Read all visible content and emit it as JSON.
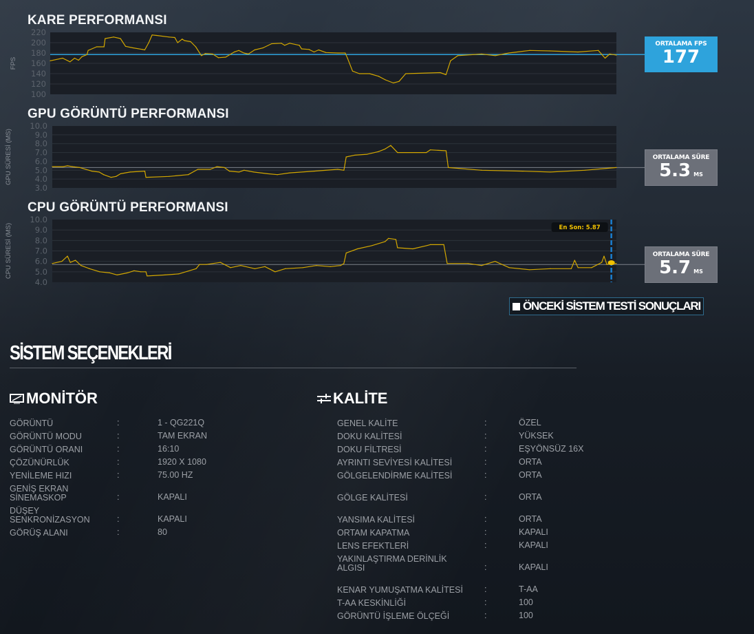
{
  "charts": {
    "fps": {
      "title": "KARE PERFORMANSI",
      "avg_label": "ORTALAMA FPS",
      "avg_value": "177",
      "avg_unit": ""
    },
    "gpu": {
      "title": "GPU GÖRÜNTÜ PERFORMANSI",
      "avg_label": "ORTALAMA SÜRE",
      "avg_value": "5.3",
      "avg_unit": "MS"
    },
    "cpu": {
      "title": "CPU GÖRÜNTÜ PERFORMANSI",
      "avg_label": "ORTALAMA SÜRE",
      "avg_value": "5.7",
      "avg_unit": "MS"
    }
  },
  "legend": {
    "label": "ÖNCEKİ SİSTEM TESTİ SONUÇLARI"
  },
  "colors": {
    "line": "#d4a800",
    "fps_avg": "#2ea3dc",
    "gray_avg": "#6c7079",
    "plot_bg": "#1a1e25",
    "marker": "#1a7fd0"
  },
  "chart_data": [
    {
      "type": "line",
      "title": "KARE PERFORMANSI",
      "ylabel": "FPS",
      "xlabel": "",
      "ylim": [
        100,
        220
      ],
      "yticks": [
        "220",
        "200",
        "180",
        "160",
        "140",
        "120",
        "100"
      ],
      "average": 177,
      "grid": true,
      "x": [
        0,
        2.2,
        3.5,
        4.3,
        5.0,
        5.6,
        6.5,
        6.7,
        8.2,
        9.5,
        9.7,
        11.2,
        12.4,
        13.3,
        14.6,
        16.3,
        16.7,
        17.4,
        18.0,
        18.8,
        21.0,
        22.0,
        22.5,
        23.3,
        23.7,
        24.8,
        25.7,
        26.7,
        27.4,
        28.7,
        29.7,
        31.0,
        32.5,
        33.3,
        34.2,
        35.0,
        36.1,
        37.6,
        39.1,
        40.8,
        41.4,
        42.3,
        44.0,
        44.4,
        45.7,
        46.6,
        47.4,
        48.7,
        50.8,
        52.1,
        52.5,
        53.4,
        54.6,
        56.4,
        58.0,
        59.2,
        60.6,
        61.6,
        62.8,
        68.9,
        69.9,
        70.7,
        72.0,
        76.2,
        78.6,
        81.0,
        84.7,
        88.3,
        93.2,
        96.8,
        98.0,
        98.8,
        100
      ],
      "y": [
        165,
        170,
        163,
        170,
        166,
        173,
        177,
        185,
        192,
        192,
        208,
        211,
        208,
        193,
        190,
        187,
        186,
        200,
        215,
        214,
        211,
        210,
        200,
        207,
        204,
        202,
        192,
        175,
        179,
        178,
        171,
        172,
        182,
        185,
        180,
        178,
        186,
        190,
        198,
        199,
        195,
        199,
        195,
        188,
        187,
        182,
        186,
        181,
        180,
        180,
        170,
        145,
        140,
        140,
        135,
        128,
        122,
        125,
        140,
        142,
        138,
        165,
        175,
        178,
        175,
        180,
        185,
        184,
        182,
        185,
        170,
        178,
        176
      ]
    },
    {
      "type": "line",
      "title": "GPU GÖRÜNTÜ PERFORMANSI",
      "ylabel": "GPU SÜRESİ (MS)",
      "xlabel": "",
      "ylim": [
        3,
        10
      ],
      "yticks": [
        "10.0",
        "9.0",
        "8.0",
        "7.0",
        "6.0",
        "5.0",
        "4.0",
        "3.0"
      ],
      "average": 5.3,
      "grid": true,
      "x": [
        0,
        1.9,
        2.7,
        3.6,
        4.9,
        7.0,
        8.3,
        9.1,
        10.4,
        11.3,
        12.1,
        13.8,
        16.4,
        16.6,
        20.7,
        24.1,
        25.8,
        28.0,
        29.2,
        30.5,
        31.4,
        33.1,
        34.0,
        35.7,
        38.2,
        39.9,
        42.1,
        46.4,
        50.6,
        51.7,
        52.1,
        53.6,
        55.8,
        57.8,
        59.0,
        60.0,
        61.2,
        66.3,
        67.0,
        69.8,
        70.2,
        76.1,
        83.4,
        88.3,
        94.4,
        100
      ],
      "y": [
        5.4,
        5.4,
        5.5,
        5.4,
        5.3,
        4.9,
        4.8,
        4.5,
        4.2,
        4.3,
        4.6,
        4.8,
        4.9,
        4.2,
        4.3,
        4.5,
        5.1,
        5.1,
        5.4,
        5.3,
        4.9,
        4.8,
        5.0,
        4.8,
        4.6,
        4.5,
        4.7,
        4.9,
        5.1,
        5.0,
        6.5,
        6.7,
        6.8,
        7.1,
        7.4,
        7.8,
        7.0,
        7.0,
        7.3,
        7.2,
        5.3,
        5.0,
        4.9,
        4.8,
        5.0,
        5.3
      ]
    },
    {
      "type": "line",
      "title": "CPU GÖRÜNTÜ PERFORMANSI",
      "ylabel": "CPU SÜRESİ (MS)",
      "xlabel": "",
      "ylim": [
        4,
        10
      ],
      "yticks": [
        "10.0",
        "9.0",
        "8.0",
        "7.0",
        "6.0",
        "5.0",
        "4.0"
      ],
      "average": 5.7,
      "grid": true,
      "annotation": {
        "label": "En Son: 5.87",
        "x": 99.1,
        "y": 5.87
      },
      "x": [
        0,
        1.7,
        2.7,
        3.2,
        4.1,
        5.1,
        6.6,
        8.4,
        10.2,
        11.5,
        13.3,
        14.5,
        15.7,
        16.6,
        16.8,
        20.0,
        22.4,
        25.5,
        26.1,
        27.3,
        29.8,
        31.6,
        33.4,
        35.9,
        37.7,
        39.5,
        41.3,
        44.4,
        46.8,
        49.3,
        51.1,
        51.7,
        52.1,
        54.1,
        56.6,
        59.0,
        59.6,
        60.9,
        61.2,
        63.9,
        66.3,
        67.0,
        69.4,
        70.0,
        73.7,
        76.1,
        78.5,
        81.0,
        84.6,
        88.3,
        92.0,
        92.6,
        93.2,
        95.6,
        97.4,
        97.8,
        98.3,
        99.0,
        100
      ],
      "y": [
        5.8,
        6.0,
        6.5,
        5.9,
        6.1,
        5.6,
        5.3,
        5.0,
        4.9,
        4.7,
        4.9,
        5.1,
        5.0,
        5.0,
        4.6,
        4.7,
        4.8,
        5.3,
        5.7,
        5.7,
        5.9,
        5.4,
        5.6,
        5.3,
        5.5,
        5.0,
        5.3,
        5.4,
        5.6,
        5.5,
        5.6,
        5.8,
        6.8,
        7.2,
        7.5,
        7.9,
        8.2,
        8.1,
        7.3,
        7.2,
        7.5,
        7.6,
        7.6,
        5.8,
        5.8,
        5.6,
        6.0,
        5.4,
        5.2,
        5.3,
        5.3,
        6.1,
        5.4,
        5.4,
        5.9,
        6.5,
        5.7,
        5.8,
        5.8
      ]
    }
  ],
  "system": {
    "title": "SİSTEM SEÇENEKLERİ",
    "monitor": {
      "title": "MONİTÖR",
      "rows": [
        {
          "key": "GÖRÜNTÜ",
          "value": "1 - QG221Q"
        },
        {
          "key": "GÖRÜNTÜ MODU",
          "value": "TAM EKRAN"
        },
        {
          "key": "GÖRÜNTÜ ORANI",
          "value": "16:10"
        },
        {
          "key": "ÇÖZÜNÜRLÜK",
          "value": "1920 X 1080"
        },
        {
          "key": "YENİLEME HIZI",
          "value": "75.00 HZ"
        },
        {
          "key": "GENİŞ EKRAN SİNEMASKOP",
          "value": "KAPALI"
        },
        {
          "key": "DÜŞEY SENKRONİZASYON",
          "value": "KAPALI"
        },
        {
          "key": "GÖRÜŞ ALANI",
          "value": "80"
        }
      ]
    },
    "quality": {
      "title": "KALİTE",
      "rows": [
        {
          "key": "GENEL KALİTE",
          "value": "ÖZEL"
        },
        {
          "key": "DOKU KALİTESİ",
          "value": "YÜKSEK"
        },
        {
          "key": "DOKU FİLTRESİ",
          "value": "EŞYÖNSÜZ 16X"
        },
        {
          "key": "AYRINTI SEVİYESİ KALİTESİ",
          "value": "ORTA"
        },
        {
          "key": "GÖLGELENDİRME KALİTESİ",
          "value": "ORTA"
        },
        {
          "key": "GÖLGE KALİTESİ",
          "value": "ORTA"
        },
        {
          "key": "YANSIMA KALİTESİ",
          "value": "ORTA"
        },
        {
          "key": "ORTAM KAPATMA",
          "value": "KAPALI"
        },
        {
          "key": "LENS EFEKTLERİ",
          "value": "KAPALI"
        },
        {
          "key": "YAKINLAŞTIRMA DERİNLİK ALGISI",
          "value": "KAPALI"
        },
        {
          "key": "KENAR YUMUŞATMA KALİTESİ",
          "value": "T-AA"
        },
        {
          "key": "T-AA KESKİNLİĞİ",
          "value": "100"
        },
        {
          "key": "GÖRÜNTÜ İŞLEME ÖLÇEĞİ",
          "value": "100"
        }
      ]
    },
    "separator": ":"
  }
}
